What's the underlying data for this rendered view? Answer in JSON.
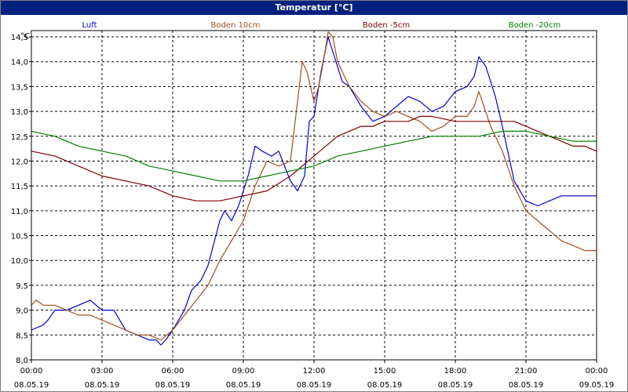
{
  "window": {
    "title": "Temperatur [°C]"
  },
  "chart_data": {
    "type": "line",
    "title": "Temperatur [°C]",
    "y_unit": "°C",
    "ylim": [
      8.0,
      14.5
    ],
    "y_ticks": [
      "8,0",
      "8,5",
      "9,0",
      "9,5",
      "10,0",
      "10,5",
      "11,0",
      "11,5",
      "12,0",
      "12,5",
      "13,0",
      "13,5",
      "14,0",
      "14,5"
    ],
    "x_ticks": [
      {
        "time": "00:00",
        "date": "08.05.19"
      },
      {
        "time": "03:00",
        "date": "08.05.19"
      },
      {
        "time": "06:00",
        "date": "08.05.19"
      },
      {
        "time": "09:00",
        "date": "08.05.19"
      },
      {
        "time": "12:00",
        "date": "08.05.19"
      },
      {
        "time": "15:00",
        "date": "08.05.19"
      },
      {
        "time": "18:00",
        "date": "08.05.19"
      },
      {
        "time": "21:00",
        "date": "08.05.19"
      },
      {
        "time": "00:00",
        "date": "09.05.19"
      }
    ],
    "xlim_hours": [
      0,
      24
    ],
    "grid": true,
    "legend_position": "top",
    "series": [
      {
        "name": "Luft",
        "color": "#0000cc",
        "x": [
          0,
          0.5,
          0.7,
          1.0,
          1.5,
          2.0,
          2.5,
          3.0,
          3.5,
          4.0,
          4.5,
          5.0,
          5.3,
          5.5,
          5.7,
          6.0,
          6.5,
          6.8,
          7.2,
          7.5,
          8.0,
          8.2,
          8.5,
          8.8,
          9.2,
          9.5,
          9.8,
          10.2,
          10.5,
          11.0,
          11.3,
          11.6,
          11.8,
          12.0,
          12.3,
          12.6,
          12.8,
          13.2,
          13.5,
          14.0,
          14.5,
          15.0,
          15.5,
          16.0,
          16.5,
          17.0,
          17.5,
          18.0,
          18.5,
          18.8,
          19.0,
          19.3,
          19.7,
          20.0,
          20.5,
          21.0,
          21.5,
          22.0,
          22.5,
          23.0,
          23.5,
          24.0
        ],
        "values": [
          8.6,
          8.7,
          8.8,
          9.0,
          9.0,
          9.1,
          9.2,
          9.0,
          9.0,
          8.6,
          8.5,
          8.4,
          8.4,
          8.3,
          8.4,
          8.6,
          9.0,
          9.4,
          9.6,
          9.9,
          10.8,
          11.0,
          10.8,
          11.1,
          11.7,
          12.3,
          12.2,
          12.1,
          12.2,
          11.6,
          11.4,
          11.7,
          12.8,
          12.9,
          13.8,
          14.5,
          14.2,
          13.6,
          13.5,
          13.1,
          12.8,
          12.9,
          13.1,
          13.3,
          13.2,
          13.0,
          13.1,
          13.4,
          13.5,
          13.7,
          14.1,
          13.9,
          13.3,
          12.7,
          11.6,
          11.2,
          11.1,
          11.2,
          11.3,
          11.3,
          11.3,
          11.3
        ]
      },
      {
        "name": "Boden 10cm",
        "color": "#a0501e",
        "x": [
          0,
          0.2,
          0.5,
          1.0,
          1.5,
          2.0,
          2.5,
          3.0,
          3.5,
          4.0,
          4.5,
          5.0,
          5.5,
          6.0,
          6.5,
          7.0,
          7.5,
          8.0,
          8.5,
          9.0,
          9.5,
          10.0,
          10.5,
          11.0,
          11.3,
          11.5,
          11.7,
          12.0,
          12.2,
          12.4,
          12.6,
          12.8,
          13.0,
          13.5,
          14.0,
          14.5,
          15.0,
          15.5,
          16.0,
          16.5,
          17.0,
          17.5,
          18.0,
          18.5,
          18.8,
          19.0,
          19.5,
          20.0,
          20.5,
          21.0,
          21.5,
          22.0,
          22.5,
          23.0,
          23.5,
          24.0
        ],
        "values": [
          9.1,
          9.2,
          9.1,
          9.1,
          9.0,
          8.9,
          8.9,
          8.8,
          8.7,
          8.6,
          8.5,
          8.5,
          8.4,
          8.6,
          8.9,
          9.2,
          9.5,
          10.0,
          10.4,
          10.8,
          11.5,
          12.0,
          11.9,
          12.0,
          13.2,
          14.0,
          13.8,
          13.2,
          13.5,
          14.0,
          14.6,
          14.5,
          14.0,
          13.5,
          13.2,
          13.0,
          12.9,
          13.0,
          12.9,
          12.8,
          12.6,
          12.7,
          12.9,
          12.9,
          13.1,
          13.4,
          12.7,
          12.2,
          11.5,
          11.0,
          10.8,
          10.6,
          10.4,
          10.3,
          10.2,
          10.2
        ]
      },
      {
        "name": "Boden -5cm",
        "color": "#800000",
        "x": [
          0,
          1.0,
          2.0,
          3.0,
          4.0,
          5.0,
          6.0,
          7.0,
          8.0,
          9.0,
          10.0,
          11.0,
          12.0,
          13.0,
          13.5,
          14.0,
          14.5,
          15.0,
          16.0,
          16.5,
          17.0,
          18.0,
          19.0,
          20.0,
          20.5,
          21.0,
          21.5,
          22.0,
          22.5,
          23.0,
          23.5,
          24.0
        ],
        "values": [
          12.2,
          12.1,
          11.9,
          11.7,
          11.6,
          11.5,
          11.3,
          11.2,
          11.2,
          11.3,
          11.4,
          11.7,
          12.1,
          12.5,
          12.6,
          12.7,
          12.7,
          12.8,
          12.8,
          12.9,
          12.9,
          12.8,
          12.8,
          12.8,
          12.8,
          12.7,
          12.6,
          12.5,
          12.4,
          12.3,
          12.3,
          12.2
        ]
      },
      {
        "name": "Boden -20cm",
        "color": "#008000",
        "x": [
          0,
          1.0,
          2.0,
          3.0,
          4.0,
          5.0,
          6.0,
          7.0,
          8.0,
          9.0,
          10.0,
          11.0,
          12.0,
          13.0,
          14.0,
          15.0,
          16.0,
          17.0,
          18.0,
          19.0,
          20.0,
          21.0,
          22.0,
          23.0,
          24.0
        ],
        "values": [
          12.6,
          12.5,
          12.3,
          12.2,
          12.1,
          11.9,
          11.8,
          11.7,
          11.6,
          11.6,
          11.7,
          11.8,
          11.9,
          12.1,
          12.2,
          12.3,
          12.4,
          12.5,
          12.5,
          12.5,
          12.6,
          12.6,
          12.5,
          12.4,
          12.4
        ]
      }
    ]
  }
}
